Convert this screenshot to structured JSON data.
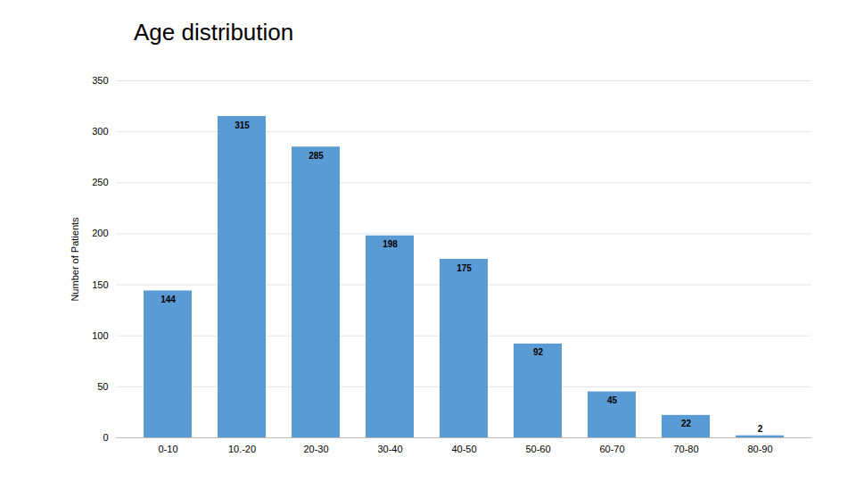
{
  "chart_data": {
    "type": "bar",
    "title": "Age distribution",
    "ylabel": "Number of Patients",
    "categories": [
      "0-10",
      "10.-20",
      "20-30",
      "30-40",
      "40-50",
      "50-60",
      "60-70",
      "70-80",
      "80-90"
    ],
    "values": [
      144,
      315,
      285,
      198,
      175,
      92,
      45,
      22,
      2
    ],
    "color": "#5b9bd5",
    "ylim": [
      0,
      350
    ],
    "yticks": [
      0,
      50,
      100,
      150,
      200,
      250,
      300,
      350
    ],
    "grid": true,
    "data_labels": true
  }
}
